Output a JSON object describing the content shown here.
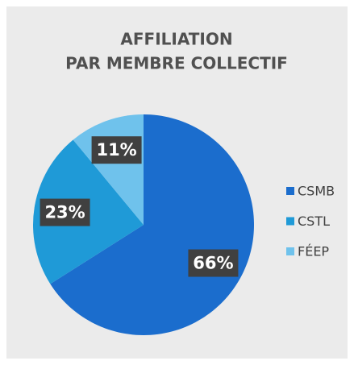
{
  "chart_data": {
    "type": "pie",
    "title": [
      "AFFILIATION",
      "PAR MEMBRE COLLECTIF"
    ],
    "categories": [
      "CSMB",
      "CSTL",
      "FÉEP"
    ],
    "values": [
      66,
      23,
      11
    ],
    "value_labels": [
      "66%",
      "23%",
      "11%"
    ],
    "colors": [
      "#1b6dcd",
      "#1f9ad7",
      "#6fc2ec"
    ],
    "legend": "right"
  }
}
